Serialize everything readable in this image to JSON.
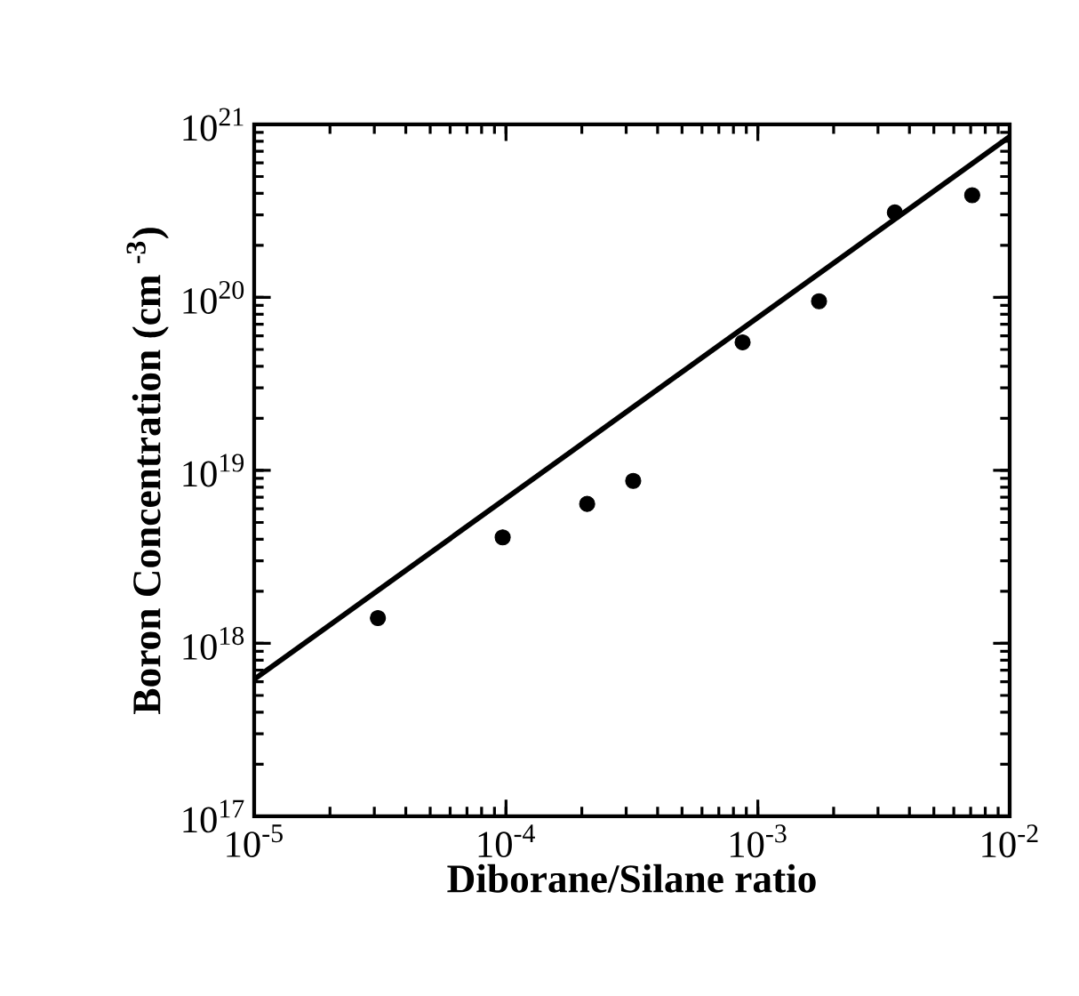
{
  "chart_data": {
    "type": "scatter",
    "xlabel": "Diborane/Silane ratio",
    "ylabel": "Boron Concentration (cm $^{-3}$)",
    "log": "xy",
    "xlim": [
      1e-05,
      0.01
    ],
    "ylim": [
      1e+17,
      1e+21
    ],
    "xticks": [
      {
        "value": 1e-05,
        "label": "10$^{-5}$"
      },
      {
        "value": 0.0001,
        "label": "10$^{-4}$"
      },
      {
        "value": 0.001,
        "label": "10$^{-3}$"
      },
      {
        "value": 0.01,
        "label": "10$^{-2}$"
      }
    ],
    "yticks": [
      {
        "value": 1e+17,
        "label": "10$^{17}$"
      },
      {
        "value": 1e+18,
        "label": "10$^{18}$"
      },
      {
        "value": 1e+19,
        "label": "10$^{19}$"
      },
      {
        "value": 1e+20,
        "label": "10$^{20}$"
      },
      {
        "value": 1e+21,
        "label": "10$^{21}$"
      }
    ],
    "grid": false,
    "series": [
      {
        "color": "#000000",
        "marker": "circle",
        "x": [
          3.1e-05,
          9.7e-05,
          0.00021,
          0.00032,
          0.00087,
          0.00175,
          0.0035,
          0.0071
        ],
        "values": [
          1.4e+18,
          4.1e+18,
          6.4e+18,
          8.7e+18,
          5.5e+19,
          9.5e+19,
          3.1e+20,
          3.9e+20
        ]
      },
      {
        "type": "line",
        "color": "#000000",
        "marker": "none",
        "line_style": "solid",
        "x": [
          1e-05,
          0.01
        ],
        "values": [
          6.2e+17,
          8.5e+20
        ]
      }
    ]
  }
}
